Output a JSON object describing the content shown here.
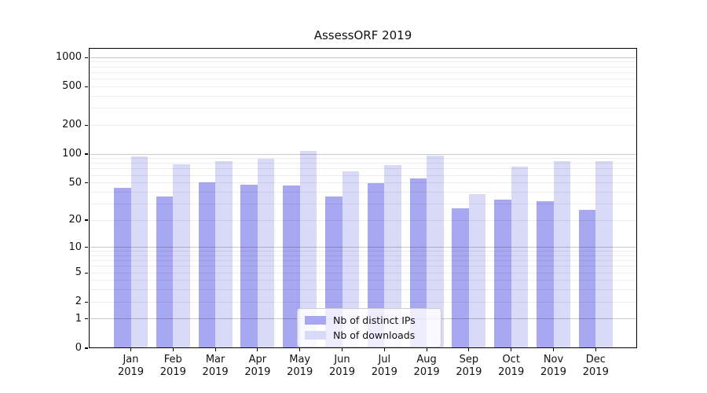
{
  "title": "AssessORF 2019",
  "colors": {
    "ips_bar": "#a7a7f2",
    "downloads_bar": "#d9d9f8",
    "grid_major": "#c9c9c9",
    "grid_minor": "#ededed",
    "spine": "#000000",
    "legend_border": "#cccccc"
  },
  "chart_data": {
    "type": "bar",
    "title": "AssessORF 2019",
    "categories": [
      "Jan",
      "Feb",
      "Mar",
      "Apr",
      "May",
      "Jun",
      "Jul",
      "Aug",
      "Sep",
      "Oct",
      "Nov",
      "Dec"
    ],
    "year_label": "2019",
    "series": [
      {
        "name": "Nb of distinct IPs",
        "color": "#a7a7f2",
        "values": [
          44,
          36,
          51,
          48,
          47,
          36,
          50,
          56,
          27,
          33,
          32,
          26
        ]
      },
      {
        "name": "Nb of downloads",
        "color": "#d9d9f8",
        "values": [
          94,
          78,
          84,
          89,
          108,
          66,
          77,
          97,
          38,
          74,
          85,
          85
        ]
      }
    ],
    "xlabel": "",
    "ylabel": "",
    "yscale": "log1p",
    "yticks": [
      0,
      1,
      2,
      5,
      10,
      20,
      50,
      100,
      200,
      500,
      1000
    ],
    "ylim": [
      0,
      1260
    ],
    "grid": true,
    "grid_minor_values": [
      2,
      3,
      4,
      5,
      6,
      7,
      8,
      9,
      20,
      30,
      40,
      50,
      60,
      70,
      80,
      90,
      200,
      300,
      400,
      500,
      600,
      700,
      800,
      900
    ],
    "grid_major_values": [
      1,
      10,
      100,
      1000
    ],
    "legend_position": "lower center"
  }
}
